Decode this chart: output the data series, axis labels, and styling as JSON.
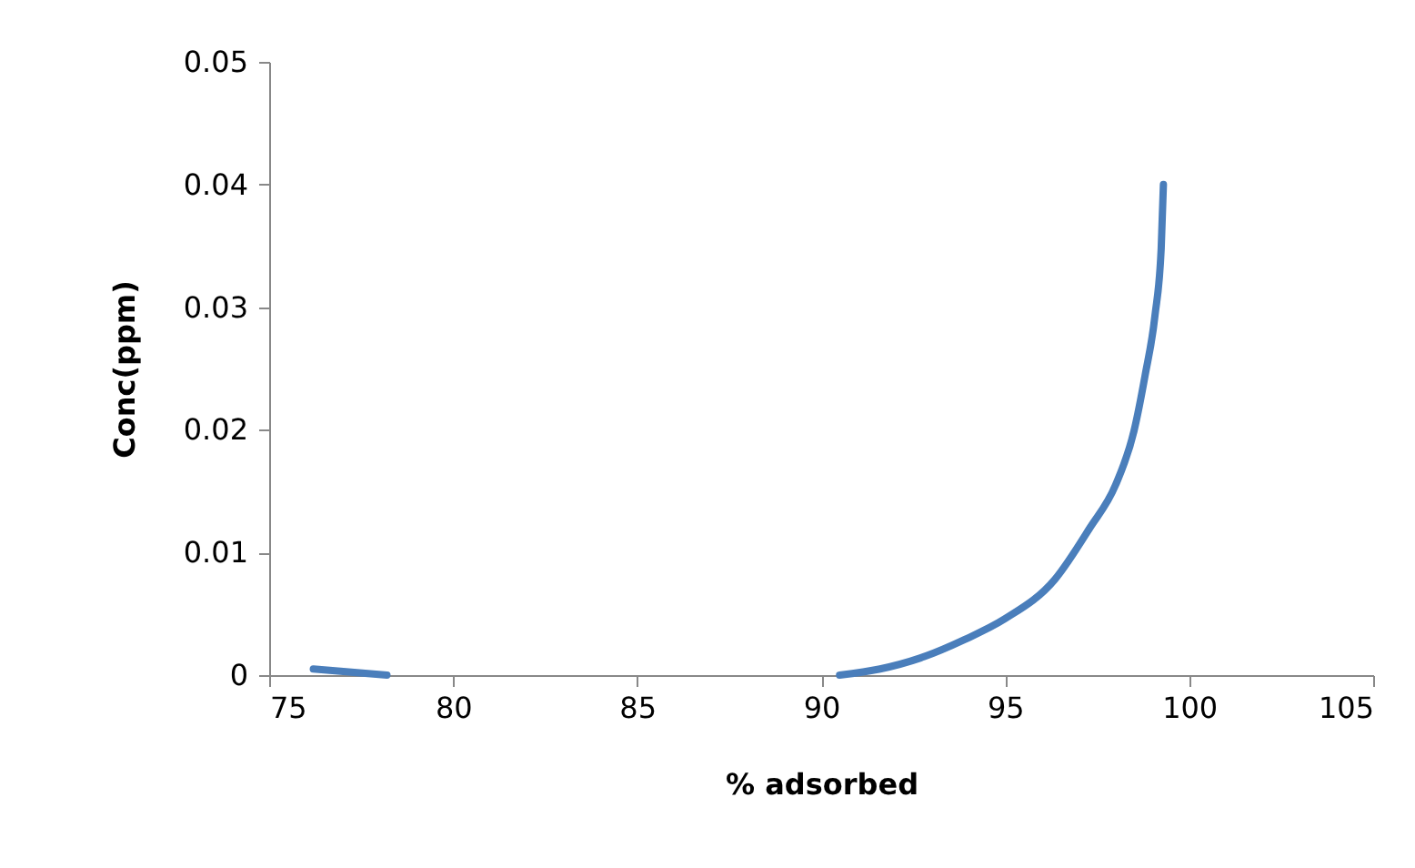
{
  "chart_data": {
    "type": "line",
    "xlabel": "% adsorbed",
    "ylabel": "Conc(ppm)",
    "series": [
      {
        "color": "#4a7ebb",
        "x": [
          76.2,
          78.2,
          84,
          90.5,
          91.6,
          92.7,
          93.9,
          95.0,
          96.35,
          97.3,
          98.0,
          98.5,
          98.8,
          99.07,
          99.24,
          99.3
        ],
        "values": [
          0.0005,
          0,
          null,
          0,
          0.0005,
          0.0014,
          0.0029,
          0.0046,
          0.0078,
          0.012,
          0.0155,
          0.0199,
          0.0244,
          0.0293,
          0.0348,
          0.04
        ]
      }
    ],
    "xlim": [
      75,
      105
    ],
    "xticks": [
      75,
      80,
      85,
      90,
      95,
      100,
      105
    ],
    "ylim": [
      0,
      0.05
    ],
    "yticks": [
      0,
      0.01,
      0.02,
      0.03,
      0.04,
      0.05
    ],
    "grid": false,
    "legend": false,
    "marker": "none",
    "line_style": "solid"
  }
}
